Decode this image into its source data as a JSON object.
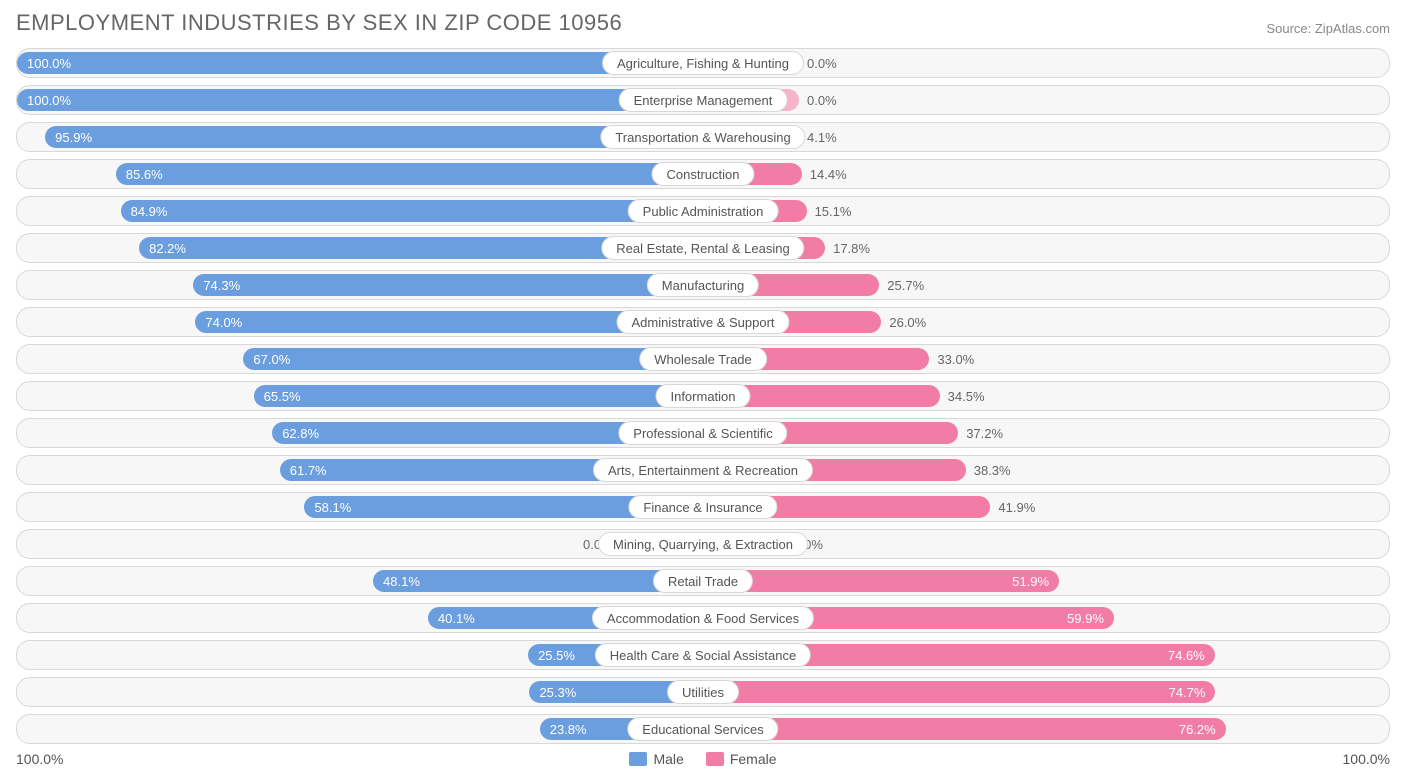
{
  "title": "EMPLOYMENT INDUSTRIES BY SEX IN ZIP CODE 10956",
  "source": "Source: ZipAtlas.com",
  "colors": {
    "male": "#6b9ede",
    "male_light": "#a7c4ea",
    "female": "#f17ca6",
    "female_light": "#f7b3cb",
    "row_bg": "#f7f7f7",
    "row_border": "#d8d8d8",
    "text": "#555555"
  },
  "axis": {
    "left_label": "100.0%",
    "right_label": "100.0%"
  },
  "legend": {
    "male": "Male",
    "female": "Female"
  },
  "font": {
    "title_size": 22,
    "label_size": 13
  },
  "rows": [
    {
      "label": "Agriculture, Fishing & Hunting",
      "male": 100.0,
      "female": 0.0,
      "male_label": "100.0%",
      "female_label": "0.0%",
      "small_right": true
    },
    {
      "label": "Enterprise Management",
      "male": 100.0,
      "female": 0.0,
      "male_label": "100.0%",
      "female_label": "0.0%",
      "small_right": true
    },
    {
      "label": "Transportation & Warehousing",
      "male": 95.9,
      "female": 4.1,
      "male_label": "95.9%",
      "female_label": "4.1%",
      "small_right": true
    },
    {
      "label": "Construction",
      "male": 85.6,
      "female": 14.4,
      "male_label": "85.6%",
      "female_label": "14.4%"
    },
    {
      "label": "Public Administration",
      "male": 84.9,
      "female": 15.1,
      "male_label": "84.9%",
      "female_label": "15.1%"
    },
    {
      "label": "Real Estate, Rental & Leasing",
      "male": 82.2,
      "female": 17.8,
      "male_label": "82.2%",
      "female_label": "17.8%"
    },
    {
      "label": "Manufacturing",
      "male": 74.3,
      "female": 25.7,
      "male_label": "74.3%",
      "female_label": "25.7%"
    },
    {
      "label": "Administrative & Support",
      "male": 74.0,
      "female": 26.0,
      "male_label": "74.0%",
      "female_label": "26.0%"
    },
    {
      "label": "Wholesale Trade",
      "male": 67.0,
      "female": 33.0,
      "male_label": "67.0%",
      "female_label": "33.0%"
    },
    {
      "label": "Information",
      "male": 65.5,
      "female": 34.5,
      "male_label": "65.5%",
      "female_label": "34.5%"
    },
    {
      "label": "Professional & Scientific",
      "male": 62.8,
      "female": 37.2,
      "male_label": "62.8%",
      "female_label": "37.2%"
    },
    {
      "label": "Arts, Entertainment & Recreation",
      "male": 61.7,
      "female": 38.3,
      "male_label": "61.7%",
      "female_label": "38.3%"
    },
    {
      "label": "Finance & Insurance",
      "male": 58.1,
      "female": 41.9,
      "male_label": "58.1%",
      "female_label": "41.9%"
    },
    {
      "label": "Mining, Quarrying, & Extraction",
      "male": 0.0,
      "female": 0.0,
      "male_label": "0.0%",
      "female_label": "0.0%",
      "zero": true
    },
    {
      "label": "Retail Trade",
      "male": 48.1,
      "female": 51.9,
      "male_label": "48.1%",
      "female_label": "51.9%"
    },
    {
      "label": "Accommodation & Food Services",
      "male": 40.1,
      "female": 59.9,
      "male_label": "40.1%",
      "female_label": "59.9%"
    },
    {
      "label": "Health Care & Social Assistance",
      "male": 25.5,
      "female": 74.6,
      "male_label": "25.5%",
      "female_label": "74.6%"
    },
    {
      "label": "Utilities",
      "male": 25.3,
      "female": 74.7,
      "male_label": "25.3%",
      "female_label": "74.7%"
    },
    {
      "label": "Educational Services",
      "male": 23.8,
      "female": 76.2,
      "male_label": "23.8%",
      "female_label": "76.2%"
    }
  ]
}
